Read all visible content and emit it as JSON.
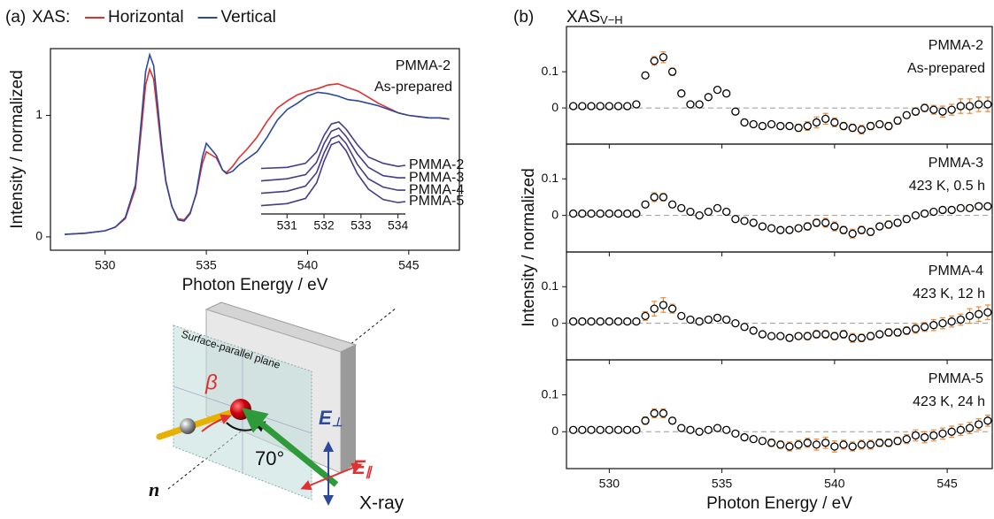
{
  "panel_labels": [
    "(a)",
    "(b)"
  ],
  "chart_data": [
    {
      "type": "line",
      "legend_label": "XAS:",
      "xlabel": "Photon Energy / eV",
      "ylabel": "Intensity / normalized",
      "annotation": "PMMA-2",
      "condition": "As-prepared",
      "x": [
        528,
        529,
        530,
        530.5,
        531,
        531.5,
        531.8,
        532,
        532.2,
        532.4,
        532.6,
        532.8,
        533,
        533.3,
        533.6,
        533.9,
        534.2,
        534.5,
        534.8,
        535,
        535.2,
        535.5,
        535.8,
        536,
        536.3,
        536.6,
        537,
        537.5,
        538,
        538.5,
        539,
        539.5,
        540,
        540.5,
        541,
        541.5,
        542,
        542.5,
        543,
        543.5,
        544,
        544.5,
        545,
        545.5,
        546,
        546.5,
        547
      ],
      "series": [
        {
          "name": "Horizontal",
          "color": "#e03030",
          "values": [
            0.02,
            0.03,
            0.05,
            0.08,
            0.15,
            0.4,
            0.9,
            1.25,
            1.38,
            1.3,
            1.0,
            0.7,
            0.45,
            0.25,
            0.15,
            0.14,
            0.2,
            0.35,
            0.6,
            0.7,
            0.68,
            0.65,
            0.55,
            0.53,
            0.58,
            0.65,
            0.72,
            0.82,
            0.95,
            1.06,
            1.12,
            1.17,
            1.2,
            1.22,
            1.25,
            1.26,
            1.23,
            1.2,
            1.15,
            1.1,
            1.06,
            1.02,
            1.0,
            0.99,
            0.98,
            0.98,
            0.97
          ]
        },
        {
          "name": "Vertical",
          "color": "#2b4a9b",
          "values": [
            0.02,
            0.03,
            0.05,
            0.08,
            0.16,
            0.43,
            0.98,
            1.36,
            1.5,
            1.41,
            1.08,
            0.74,
            0.46,
            0.25,
            0.14,
            0.13,
            0.19,
            0.36,
            0.65,
            0.77,
            0.73,
            0.67,
            0.55,
            0.52,
            0.54,
            0.59,
            0.64,
            0.7,
            0.82,
            0.96,
            1.05,
            1.1,
            1.16,
            1.19,
            1.18,
            1.16,
            1.13,
            1.12,
            1.1,
            1.08,
            1.05,
            1.02,
            1.0,
            0.99,
            0.98,
            0.98,
            0.97
          ]
        }
      ],
      "xlim": [
        527.3,
        547.5
      ],
      "ylim": [
        -0.11,
        1.55
      ],
      "xticks": [
        530,
        535,
        540,
        545
      ],
      "yticks": [
        0,
        1
      ]
    },
    {
      "type": "line",
      "x": [
        530.3,
        531,
        531.5,
        531.8,
        532,
        532.2,
        532.4,
        532.6,
        532.9,
        533.2,
        533.6,
        534,
        534.2
      ],
      "series": [
        {
          "name": "PMMA-2",
          "color": "#4a3a8a",
          "values": [
            0.44,
            0.45,
            0.49,
            0.6,
            0.76,
            0.87,
            0.89,
            0.82,
            0.67,
            0.55,
            0.49,
            0.46,
            0.47
          ]
        },
        {
          "name": "PMMA-3",
          "color": "#4a3a8a",
          "values": [
            0.32,
            0.34,
            0.38,
            0.5,
            0.68,
            0.8,
            0.83,
            0.75,
            0.58,
            0.45,
            0.37,
            0.35,
            0.35
          ]
        },
        {
          "name": "PMMA-4",
          "color": "#4a3a8a",
          "values": [
            0.2,
            0.22,
            0.27,
            0.4,
            0.59,
            0.73,
            0.76,
            0.68,
            0.48,
            0.34,
            0.26,
            0.23,
            0.23
          ]
        },
        {
          "name": "PMMA-5",
          "color": "#4a3a8a",
          "values": [
            0.08,
            0.1,
            0.15,
            0.3,
            0.51,
            0.67,
            0.7,
            0.61,
            0.39,
            0.24,
            0.14,
            0.11,
            0.12
          ]
        }
      ],
      "xlim": [
        530.3,
        534.2
      ],
      "ylim": [
        0,
        1
      ],
      "xticks": [
        531,
        532,
        533,
        534
      ]
    },
    {
      "type": "scatter",
      "title": "XAS",
      "title_sub": "V−H",
      "ylabel": "Intensity / normalized",
      "annotation": "PMMA-2",
      "condition": "As-prepared",
      "marker_color": "#000000",
      "error_color": "#f08a30",
      "hline": 0,
      "x": [
        528.4,
        528.8,
        529.2,
        529.6,
        530.0,
        530.4,
        530.8,
        531.2,
        531.6,
        532.0,
        532.4,
        532.8,
        533.2,
        533.6,
        534.0,
        534.4,
        534.8,
        535.2,
        535.6,
        536.0,
        536.4,
        536.8,
        537.2,
        537.6,
        538.0,
        538.4,
        538.8,
        539.2,
        539.6,
        540.0,
        540.4,
        540.8,
        541.2,
        541.6,
        542.0,
        542.4,
        542.8,
        543.2,
        543.6,
        544.0,
        544.4,
        544.8,
        545.2,
        545.6,
        546.0,
        546.4,
        546.8
      ],
      "values": [
        0.005,
        0.005,
        0.005,
        0.005,
        0.005,
        0.005,
        0.005,
        0.01,
        0.09,
        0.13,
        0.14,
        0.1,
        0.04,
        0.01,
        0.01,
        0.03,
        0.05,
        0.04,
        -0.01,
        -0.04,
        -0.045,
        -0.05,
        -0.045,
        -0.05,
        -0.05,
        -0.055,
        -0.05,
        -0.04,
        -0.03,
        -0.04,
        -0.05,
        -0.055,
        -0.06,
        -0.05,
        -0.045,
        -0.05,
        -0.035,
        -0.02,
        -0.01,
        0,
        -0.005,
        -0.01,
        -0.005,
        0.005,
        0.005,
        0.01,
        0.01
      ],
      "errors": [
        0.003,
        0.003,
        0.003,
        0.003,
        0.003,
        0.003,
        0.003,
        0.004,
        0.008,
        0.012,
        0.015,
        0.01,
        0.006,
        0.004,
        0.004,
        0.006,
        0.008,
        0.006,
        0.005,
        0.005,
        0.005,
        0.006,
        0.006,
        0.006,
        0.008,
        0.01,
        0.012,
        0.015,
        0.015,
        0.012,
        0.01,
        0.01,
        0.012,
        0.01,
        0.008,
        0.01,
        0.01,
        0.008,
        0.01,
        0.01,
        0.012,
        0.015,
        0.015,
        0.02,
        0.02,
        0.02,
        0.02
      ],
      "xlim": [
        528.1,
        547
      ],
      "ylim": [
        -0.1,
        0.225
      ],
      "xticks": [
        530,
        535,
        540,
        545
      ],
      "yticks": [
        0,
        0.1
      ]
    },
    {
      "type": "scatter",
      "annotation": "PMMA-3",
      "condition": "423 K, 0.5 h",
      "marker_color": "#000000",
      "error_color": "#f08a30",
      "hline": 0,
      "x": [
        528.4,
        528.8,
        529.2,
        529.6,
        530.0,
        530.4,
        530.8,
        531.2,
        531.6,
        532.0,
        532.4,
        532.8,
        533.2,
        533.6,
        534.0,
        534.4,
        534.8,
        535.2,
        535.6,
        536.0,
        536.4,
        536.8,
        537.2,
        537.6,
        538.0,
        538.4,
        538.8,
        539.2,
        539.6,
        540.0,
        540.4,
        540.8,
        541.2,
        541.6,
        542.0,
        542.4,
        542.8,
        543.2,
        543.6,
        544.0,
        544.4,
        544.8,
        545.2,
        545.6,
        546.0,
        546.4,
        546.8
      ],
      "values": [
        0.005,
        0.005,
        0.005,
        0.005,
        0.005,
        0.005,
        0.005,
        0.005,
        0.03,
        0.05,
        0.05,
        0.03,
        0.02,
        0.01,
        0,
        0.01,
        0.02,
        0.01,
        -0.01,
        -0.015,
        -0.02,
        -0.03,
        -0.035,
        -0.04,
        -0.04,
        -0.035,
        -0.03,
        -0.02,
        -0.02,
        -0.03,
        -0.04,
        -0.05,
        -0.04,
        -0.045,
        -0.03,
        -0.025,
        -0.02,
        -0.01,
        0,
        0.005,
        0.01,
        0.015,
        0.015,
        0.02,
        0.02,
        0.025,
        0.025
      ],
      "errors": [
        0.003,
        0.003,
        0.003,
        0.003,
        0.003,
        0.003,
        0.003,
        0.004,
        0.008,
        0.012,
        0.01,
        0.008,
        0.006,
        0.004,
        0.004,
        0.005,
        0.006,
        0.005,
        0.005,
        0.005,
        0.005,
        0.006,
        0.006,
        0.006,
        0.008,
        0.008,
        0.01,
        0.01,
        0.012,
        0.012,
        0.01,
        0.012,
        0.01,
        0.01,
        0.008,
        0.01,
        0.008,
        0.008,
        0.006,
        0.006,
        0.006,
        0.006,
        0.006,
        0.008,
        0.008,
        0.008,
        0.008
      ],
      "xlim": [
        528.1,
        547
      ],
      "ylim": [
        -0.1,
        0.195
      ],
      "xticks": [
        530,
        535,
        540,
        545
      ],
      "yticks": [
        0,
        0.1
      ]
    },
    {
      "type": "scatter",
      "annotation": "PMMA-4",
      "condition": "423 K, 12 h",
      "marker_color": "#000000",
      "error_color": "#f08a30",
      "hline": 0,
      "x": [
        528.4,
        528.8,
        529.2,
        529.6,
        530.0,
        530.4,
        530.8,
        531.2,
        531.6,
        532.0,
        532.4,
        532.8,
        533.2,
        533.6,
        534.0,
        534.4,
        534.8,
        535.2,
        535.6,
        536.0,
        536.4,
        536.8,
        537.2,
        537.6,
        538.0,
        538.4,
        538.8,
        539.2,
        539.6,
        540.0,
        540.4,
        540.8,
        541.2,
        541.6,
        542.0,
        542.4,
        542.8,
        543.2,
        543.6,
        544.0,
        544.4,
        544.8,
        545.2,
        545.6,
        546.0,
        546.4,
        546.8
      ],
      "values": [
        0.005,
        0.005,
        0.005,
        0.005,
        0.005,
        0.005,
        0.005,
        0.005,
        0.02,
        0.04,
        0.05,
        0.04,
        0.02,
        0.01,
        0.005,
        0.01,
        0.015,
        0.01,
        0,
        -0.01,
        -0.02,
        -0.03,
        -0.035,
        -0.035,
        -0.04,
        -0.035,
        -0.035,
        -0.03,
        -0.03,
        -0.035,
        -0.03,
        -0.04,
        -0.04,
        -0.035,
        -0.03,
        -0.025,
        -0.025,
        -0.02,
        -0.015,
        -0.01,
        -0.005,
        0,
        0.005,
        0.01,
        0.02,
        0.025,
        0.03
      ],
      "errors": [
        0.003,
        0.003,
        0.003,
        0.003,
        0.003,
        0.003,
        0.003,
        0.004,
        0.012,
        0.02,
        0.02,
        0.012,
        0.006,
        0.004,
        0.004,
        0.005,
        0.006,
        0.006,
        0.005,
        0.005,
        0.005,
        0.006,
        0.006,
        0.006,
        0.008,
        0.008,
        0.01,
        0.01,
        0.01,
        0.01,
        0.01,
        0.012,
        0.01,
        0.01,
        0.008,
        0.01,
        0.01,
        0.01,
        0.012,
        0.012,
        0.015,
        0.015,
        0.015,
        0.015,
        0.02,
        0.02,
        0.02
      ],
      "xlim": [
        528.1,
        547
      ],
      "ylim": [
        -0.1,
        0.195
      ],
      "xticks": [
        530,
        535,
        540,
        545
      ],
      "yticks": [
        0,
        0.1
      ]
    },
    {
      "type": "scatter",
      "annotation": "PMMA-5",
      "condition": "423 K, 24 h",
      "xlabel": "Photon Energy / eV",
      "marker_color": "#000000",
      "error_color": "#f08a30",
      "hline": 0,
      "x": [
        528.4,
        528.8,
        529.2,
        529.6,
        530.0,
        530.4,
        530.8,
        531.2,
        531.6,
        532.0,
        532.4,
        532.8,
        533.2,
        533.6,
        534.0,
        534.4,
        534.8,
        535.2,
        535.6,
        536.0,
        536.4,
        536.8,
        537.2,
        537.6,
        538.0,
        538.4,
        538.8,
        539.2,
        539.6,
        540.0,
        540.4,
        540.8,
        541.2,
        541.6,
        542.0,
        542.4,
        542.8,
        543.2,
        543.6,
        544.0,
        544.4,
        544.8,
        545.2,
        545.6,
        546.0,
        546.4,
        546.8
      ],
      "values": [
        0.005,
        0.005,
        0.005,
        0.005,
        0.005,
        0.005,
        0.005,
        0.005,
        0.03,
        0.05,
        0.05,
        0.03,
        0.01,
        0.005,
        0,
        0.005,
        0.01,
        0.005,
        -0.005,
        -0.015,
        -0.02,
        -0.025,
        -0.03,
        -0.035,
        -0.04,
        -0.035,
        -0.03,
        -0.035,
        -0.03,
        -0.04,
        -0.035,
        -0.04,
        -0.035,
        -0.035,
        -0.03,
        -0.03,
        -0.025,
        -0.02,
        -0.01,
        -0.015,
        -0.01,
        -0.005,
        0,
        0.005,
        0.01,
        0.02,
        0.03
      ],
      "errors": [
        0.003,
        0.003,
        0.003,
        0.003,
        0.003,
        0.003,
        0.003,
        0.004,
        0.01,
        0.012,
        0.012,
        0.008,
        0.005,
        0.004,
        0.004,
        0.005,
        0.008,
        0.006,
        0.005,
        0.005,
        0.006,
        0.008,
        0.01,
        0.01,
        0.012,
        0.012,
        0.012,
        0.015,
        0.015,
        0.015,
        0.012,
        0.012,
        0.012,
        0.012,
        0.01,
        0.01,
        0.01,
        0.012,
        0.015,
        0.015,
        0.015,
        0.015,
        0.015,
        0.015,
        0.015,
        0.015,
        0.015
      ],
      "xlim": [
        528.1,
        547
      ],
      "ylim": [
        -0.1,
        0.195
      ],
      "xticks": [
        530,
        535,
        540,
        545
      ],
      "yticks": [
        0,
        0.1
      ]
    }
  ],
  "diagram": {
    "plane_label": "Surface-parallel plane",
    "beta": "β",
    "angle": "70°",
    "e_perp": {
      "symbol": "E",
      "sub": "⊥"
    },
    "e_par": {
      "symbol": "E",
      "sub": "∥"
    },
    "normal": "n",
    "beam": "X-ray"
  }
}
